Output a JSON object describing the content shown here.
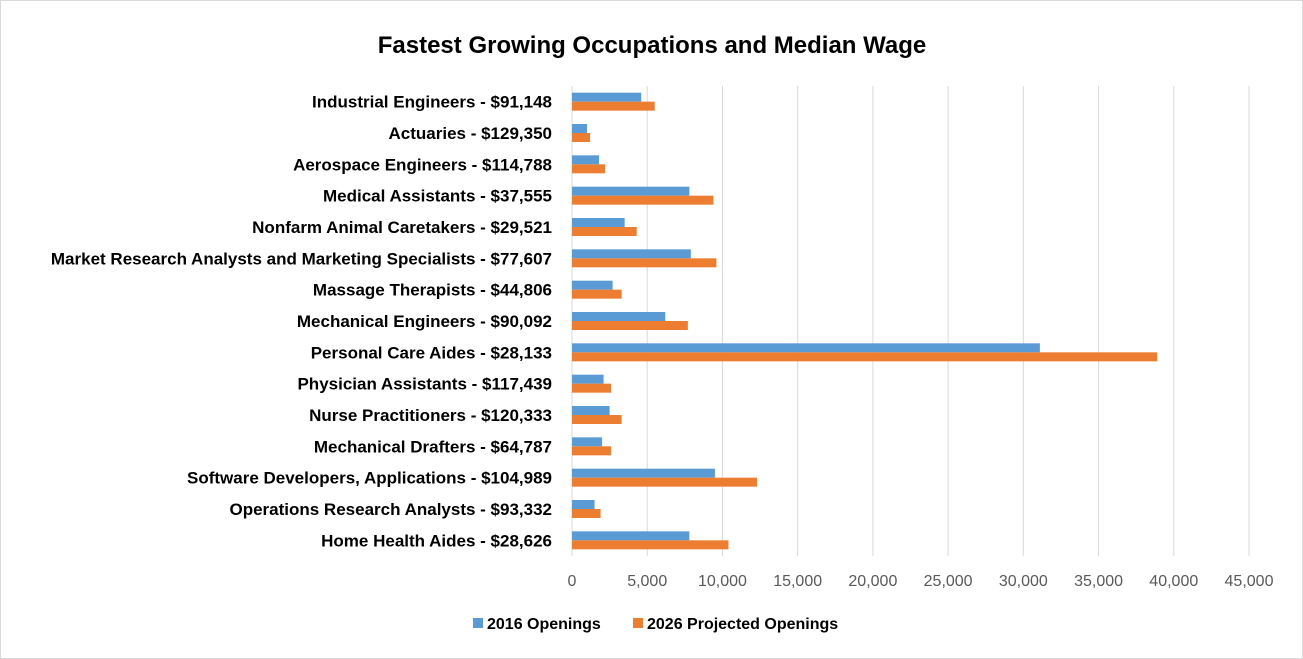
{
  "chart_data": {
    "type": "bar",
    "orientation": "horizontal",
    "title": "Fastest Growing Occupations and Median Wage",
    "xlabel": "",
    "ylabel": "",
    "xlim": [
      0,
      45000
    ],
    "x_ticks": [
      "0",
      "5,000",
      "10,000",
      "15,000",
      "20,000",
      "25,000",
      "30,000",
      "35,000",
      "40,000",
      "45,000"
    ],
    "grid": true,
    "legend_position": "bottom",
    "categories": [
      "Industrial Engineers - $91,148",
      "Actuaries - $129,350",
      "Aerospace Engineers - $114,788",
      "Medical Assistants - $37,555",
      "Nonfarm Animal Caretakers - $29,521",
      "Market Research Analysts and Marketing Specialists - $77,607",
      "Massage Therapists - $44,806",
      "Mechanical Engineers - $90,092",
      "Personal Care Aides - $28,133",
      "Physician Assistants - $117,439",
      "Nurse Practitioners - $120,333",
      "Mechanical Drafters - $64,787",
      "Software Developers, Applications - $104,989",
      "Operations Research Analysts - $93,332",
      "Home Health Aides - $28,626"
    ],
    "series": [
      {
        "name": "2016 Openings",
        "color": "#5b9bd5",
        "values": [
          4600,
          1000,
          1800,
          7800,
          3500,
          7900,
          2700,
          6200,
          31100,
          2100,
          2500,
          2000,
          9500,
          1500,
          7800
        ]
      },
      {
        "name": "2026 Projected Openings",
        "color": "#ed7d31",
        "values": [
          5500,
          1200,
          2200,
          9400,
          4300,
          9600,
          3300,
          7700,
          38900,
          2600,
          3300,
          2600,
          12300,
          1900,
          10400
        ]
      }
    ]
  }
}
